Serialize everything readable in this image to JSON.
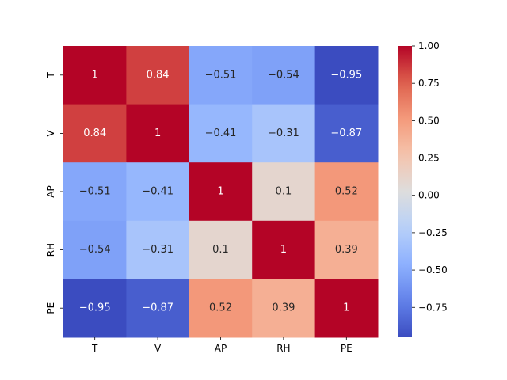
{
  "chart_data": {
    "type": "heatmap",
    "title": "",
    "xlabel": "",
    "ylabel": "",
    "x_labels": [
      "T",
      "V",
      "AP",
      "RH",
      "PE"
    ],
    "y_labels": [
      "T",
      "V",
      "AP",
      "RH",
      "PE"
    ],
    "values": [
      [
        1,
        0.84,
        -0.51,
        -0.54,
        -0.95
      ],
      [
        0.84,
        1,
        -0.41,
        -0.31,
        -0.87
      ],
      [
        -0.51,
        -0.41,
        1,
        0.1,
        0.52
      ],
      [
        -0.54,
        -0.31,
        0.1,
        1,
        0.39
      ],
      [
        -0.95,
        -0.87,
        0.52,
        0.39,
        1
      ]
    ],
    "annotations": [
      [
        "1",
        "0.84",
        "-0.51",
        "-0.54",
        "-0.95"
      ],
      [
        "0.84",
        "1",
        "-0.41",
        "-0.31",
        "-0.87"
      ],
      [
        "-0.51",
        "-0.41",
        "1",
        "0.1",
        "0.52"
      ],
      [
        "-0.54",
        "-0.31",
        "0.1",
        "1",
        "0.39"
      ],
      [
        "-0.95",
        "-0.87",
        "0.52",
        "0.39",
        "1"
      ]
    ],
    "colormap": "coolwarm",
    "colorbar": {
      "vmin": -0.95,
      "vmax": 1.0,
      "ticks": [
        1.0,
        0.75,
        0.5,
        0.25,
        0.0,
        -0.25,
        -0.5,
        -0.75
      ],
      "tick_labels": [
        "1.00",
        "0.75",
        "0.50",
        "0.25",
        "0.00",
        "−0.25",
        "−0.50",
        "−0.75"
      ],
      "position": "right"
    },
    "grid": false
  }
}
